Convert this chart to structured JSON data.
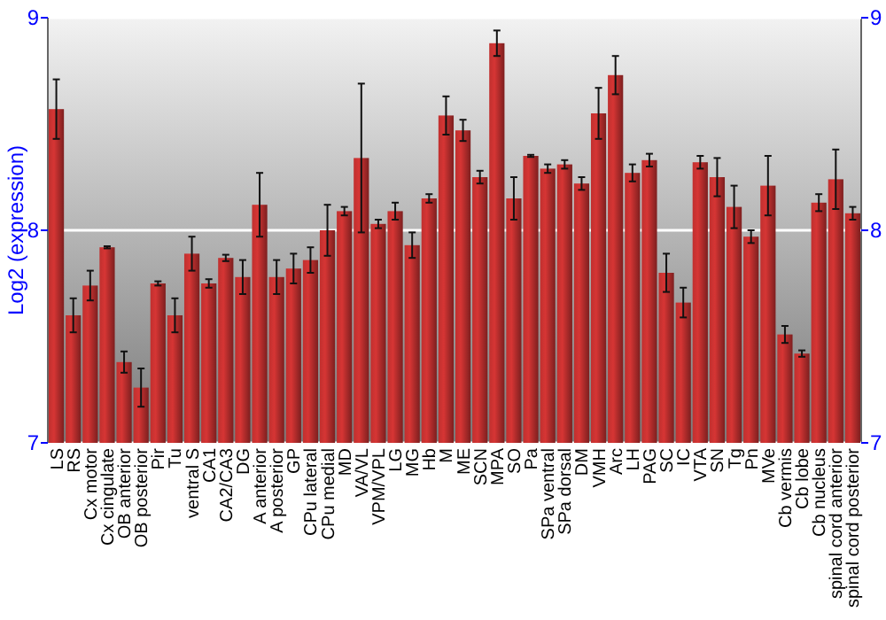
{
  "chart_data": {
    "type": "bar",
    "ylabel": "Log2 (expression)",
    "categories": [
      "LS",
      "RS",
      "Cx motor",
      "Cx cingulate",
      "OB anterior",
      "OB posterior",
      "Pir",
      "Tu",
      "ventral S",
      "CA1",
      "CA2/CA3",
      "DG",
      "A anterior",
      "A posterior",
      "GP",
      "CPu lateral",
      "CPu medial",
      "MD",
      "VA/VL",
      "VPM/VPL",
      "LG",
      "MG",
      "Hb",
      "M",
      "ME",
      "SCN",
      "MPA",
      "SO",
      "Pa",
      "SPa ventral",
      "SPa dorsal",
      "DM",
      "VMH",
      "Arc",
      "LH",
      "PAG",
      "SC",
      "IC",
      "VTA",
      "SN",
      "Tg",
      "Pn",
      "MVe",
      "Cb vermis",
      "Cb lobe",
      "Cb nucleus",
      "spinal cord anterior",
      "spinal cord posterior"
    ],
    "values": [
      8.57,
      7.6,
      7.74,
      7.92,
      7.38,
      7.26,
      7.75,
      7.6,
      7.89,
      7.75,
      7.87,
      7.78,
      8.12,
      7.78,
      7.82,
      7.86,
      8.0,
      8.09,
      8.34,
      8.03,
      8.09,
      7.93,
      8.15,
      8.54,
      8.47,
      8.25,
      8.88,
      8.15,
      8.35,
      8.29,
      8.31,
      8.22,
      8.55,
      8.73,
      8.27,
      8.33,
      7.8,
      7.66,
      8.32,
      8.25,
      8.11,
      7.97,
      8.21,
      7.51,
      7.42,
      8.13,
      8.24,
      8.08
    ],
    "errors": [
      0.14,
      0.08,
      0.07,
      0.005,
      0.05,
      0.09,
      0.01,
      0.08,
      0.08,
      0.02,
      0.015,
      0.08,
      0.15,
      0.08,
      0.07,
      0.06,
      0.12,
      0.02,
      0.35,
      0.02,
      0.04,
      0.06,
      0.02,
      0.09,
      0.05,
      0.03,
      0.06,
      0.1,
      0.005,
      0.02,
      0.02,
      0.03,
      0.12,
      0.09,
      0.04,
      0.03,
      0.09,
      0.07,
      0.03,
      0.09,
      0.1,
      0.03,
      0.14,
      0.04,
      0.015,
      0.04,
      0.14,
      0.03
    ],
    "color": "#c0302f",
    "ylim": [
      7,
      9
    ],
    "yticks": [
      7,
      8,
      9
    ],
    "y2lim": [
      7,
      9
    ],
    "y2ticks": [
      7,
      8,
      9
    ],
    "grid": "y"
  }
}
